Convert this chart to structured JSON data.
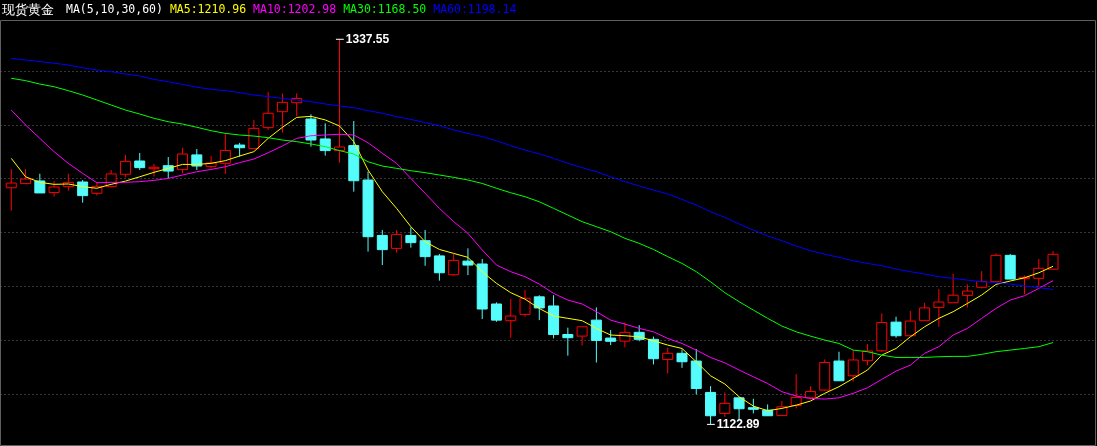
{
  "chart_data": {
    "type": "candlestick",
    "title": "现货黄金",
    "legend_title": "MA(5,10,30,60)",
    "legend": "top left",
    "grid": "y",
    "categories": [
      null,
      null,
      null,
      null,
      null,
      null,
      null,
      null,
      null,
      null,
      null,
      null,
      null,
      null,
      null,
      null,
      null,
      null,
      null,
      null,
      null,
      null,
      null,
      null,
      null,
      null,
      null,
      null,
      null,
      null,
      null,
      null,
      null,
      null,
      null,
      null,
      null,
      null,
      null,
      null,
      null,
      null,
      null,
      null,
      null,
      null,
      null,
      null,
      null,
      null,
      null,
      null,
      null,
      null,
      null,
      null,
      null,
      null,
      null,
      null,
      null,
      null,
      null,
      null,
      null,
      null,
      null,
      null,
      null,
      null,
      null,
      null,
      null,
      null
    ],
    "ylim": [
      1111.4,
      1348.3
    ],
    "yticks": [
      {
        "value": 1140,
        "label": null
      },
      {
        "value": 1170,
        "label": null
      },
      {
        "value": 1200,
        "label": null
      },
      {
        "value": 1230,
        "label": null
      },
      {
        "value": 1260,
        "label": null
      },
      {
        "value": 1290,
        "label": null
      },
      {
        "value": 1320,
        "label": null
      }
    ],
    "ohlc": [
      [
        1254.8,
        1265.2,
        1242.0,
        1257.4
      ],
      [
        1257.1,
        1265.2,
        1257.1,
        1259.6
      ],
      [
        1258.6,
        1262.6,
        1251.9,
        1251.9
      ],
      [
        1252.1,
        1258.4,
        1249.8,
        1255.2
      ],
      [
        1255.4,
        1262.6,
        1253.2,
        1257.8
      ],
      [
        1258.0,
        1259.1,
        1246.5,
        1250.4
      ],
      [
        1251.7,
        1257.8,
        1250.4,
        1255.6
      ],
      [
        1255.4,
        1264.7,
        1255.0,
        1262.5
      ],
      [
        1262.3,
        1273.1,
        1260.6,
        1269.5
      ],
      [
        1269.7,
        1274.2,
        1264.7,
        1266.0
      ],
      [
        1265.4,
        1268.1,
        1261.0,
        1266.2
      ],
      [
        1267.1,
        1271.9,
        1260.1,
        1264.1
      ],
      [
        1264.9,
        1277.1,
        1262.8,
        1273.6
      ],
      [
        1273.1,
        1276.4,
        1264.7,
        1266.9
      ],
      [
        1266.7,
        1272.5,
        1265.8,
        1268.6
      ],
      [
        1268.4,
        1285.1,
        1262.5,
        1275.6
      ],
      [
        1278.6,
        1279.8,
        1272.1,
        1277.1
      ],
      [
        1276.6,
        1292.6,
        1276.6,
        1287.9
      ],
      [
        1288.3,
        1308.2,
        1287.0,
        1296.3
      ],
      [
        1297.2,
        1307.3,
        1285.5,
        1302.4
      ],
      [
        1302.2,
        1307.4,
        1294.8,
        1304.6
      ],
      [
        1293.1,
        1295.7,
        1277.7,
        1281.4
      ],
      [
        1282.0,
        1290.7,
        1272.7,
        1275.5
      ],
      [
        1275.5,
        1337.55,
        1268.8,
        1277.5
      ],
      [
        1278.3,
        1292.0,
        1252.6,
        1258.7
      ],
      [
        1259.1,
        1263.8,
        1219.2,
        1227.5
      ],
      [
        1228.2,
        1231.2,
        1211.7,
        1220.3
      ],
      [
        1221.0,
        1231.2,
        1218.6,
        1228.8
      ],
      [
        1228.2,
        1232.7,
        1221.4,
        1224.2
      ],
      [
        1225.3,
        1231.2,
        1211.3,
        1216.4
      ],
      [
        1216.8,
        1217.9,
        1203.0,
        1207.4
      ],
      [
        1206.3,
        1217.9,
        1205.9,
        1214.3
      ],
      [
        1213.9,
        1221.0,
        1206.1,
        1211.7
      ],
      [
        1212.3,
        1215.1,
        1181.6,
        1187.2
      ],
      [
        1190.0,
        1190.9,
        1180.1,
        1181.0
      ],
      [
        1180.7,
        1192.8,
        1171.2,
        1183.3
      ],
      [
        1184.2,
        1197.8,
        1182.9,
        1193.2
      ],
      [
        1194.0,
        1194.9,
        1181.0,
        1187.8
      ],
      [
        1188.9,
        1194.9,
        1170.8,
        1173.0
      ],
      [
        1173.0,
        1176.8,
        1161.2,
        1171.2
      ],
      [
        1172.1,
        1177.3,
        1166.9,
        1177.3
      ],
      [
        1181.0,
        1188.1,
        1157.4,
        1169.7
      ],
      [
        1171.0,
        1175.5,
        1167.1,
        1169.2
      ],
      [
        1169.3,
        1179.7,
        1165.8,
        1174.2
      ],
      [
        1174.2,
        1178.2,
        1169.2,
        1170.3
      ],
      [
        1170.3,
        1171.8,
        1156.3,
        1159.5
      ],
      [
        1159.1,
        1165.6,
        1151.3,
        1162.5
      ],
      [
        1162.5,
        1164.7,
        1154.4,
        1157.8
      ],
      [
        1158.2,
        1164.9,
        1139.6,
        1142.9
      ],
      [
        1140.7,
        1144.2,
        1122.89,
        1127.7
      ],
      [
        1129.0,
        1140.7,
        1127.1,
        1134.6
      ],
      [
        1137.7,
        1137.9,
        1125.3,
        1131.6
      ],
      [
        1132.2,
        1137.2,
        1129.0,
        1131.3
      ],
      [
        1130.8,
        1134.0,
        1127.7,
        1127.7
      ],
      [
        1127.8,
        1135.9,
        1127.7,
        1132.7
      ],
      [
        1133.4,
        1150.9,
        1131.8,
        1137.9
      ],
      [
        1137.7,
        1144.2,
        1136.8,
        1141.2
      ],
      [
        1142.0,
        1159.1,
        1141.6,
        1157.4
      ],
      [
        1158.2,
        1163.4,
        1147.2,
        1147.2
      ],
      [
        1150.0,
        1164.3,
        1146.8,
        1158.8
      ],
      [
        1158.4,
        1167.6,
        1155.9,
        1163.8
      ],
      [
        1163.9,
        1184.8,
        1163.4,
        1179.7
      ],
      [
        1179.9,
        1182.9,
        1171.2,
        1172.3
      ],
      [
        1172.3,
        1186.1,
        1172.3,
        1180.5
      ],
      [
        1180.7,
        1190.7,
        1180.7,
        1187.8
      ],
      [
        1188.1,
        1198.3,
        1177.3,
        1191.1
      ],
      [
        1190.7,
        1206.7,
        1190.7,
        1194.9
      ],
      [
        1194.8,
        1200.9,
        1188.1,
        1197.2
      ],
      [
        1199.3,
        1208.3,
        1198.7,
        1202.6
      ],
      [
        1202.4,
        1218.2,
        1202.4,
        1217.1
      ],
      [
        1217.1,
        1217.9,
        1203.9,
        1203.9
      ],
      [
        1204.1,
        1205.9,
        1195.5,
        1204.9
      ],
      [
        1204.3,
        1215.1,
        1199.6,
        1209.9
      ],
      [
        1209.4,
        1219.5,
        1209.4,
        1217.7
      ]
    ],
    "colors": [
      "#ff0000",
      "#ff0000",
      "#54fcfc",
      "#ff0000",
      "#ff0000",
      "#54fcfc",
      "#ff0000",
      "#ff0000",
      "#ff0000",
      "#54fcfc",
      "#ff0000",
      "#54fcfc",
      "#ff0000",
      "#54fcfc",
      "#ff0000",
      "#ff0000",
      "#54fcfc",
      "#ff0000",
      "#ff0000",
      "#ff0000",
      "#ff0000",
      "#54fcfc",
      "#54fcfc",
      "#ff0000",
      "#54fcfc",
      "#54fcfc",
      "#54fcfc",
      "#ff0000",
      "#54fcfc",
      "#54fcfc",
      "#54fcfc",
      "#ff0000",
      "#54fcfc",
      "#54fcfc",
      "#54fcfc",
      "#ff0000",
      "#ff0000",
      "#54fcfc",
      "#54fcfc",
      "#54fcfc",
      "#ff0000",
      "#54fcfc",
      "#54fcfc",
      "#ff0000",
      "#54fcfc",
      "#54fcfc",
      "#ff0000",
      "#54fcfc",
      "#54fcfc",
      "#54fcfc",
      "#ff0000",
      "#54fcfc",
      "#54fcfc",
      "#54fcfc",
      "#ff0000",
      "#ff0000",
      "#ff0000",
      "#ff0000",
      "#54fcfc",
      "#ff0000",
      "#ff0000",
      "#ff0000",
      "#54fcfc",
      "#ff0000",
      "#ff0000",
      "#ff0000",
      "#ff0000",
      "#ff0000",
      "#ff0000",
      "#ff0000",
      "#54fcfc",
      "#ff0000",
      "#ff0000",
      "#ff0000"
    ],
    "series": [
      {
        "name": "MA5:1210.96",
        "type": "line",
        "color": "#ffff00",
        "values": [
          1271.2,
          1260.9,
          1257.8,
          1256.7,
          1256.9,
          1255.4,
          1254.5,
          1256.7,
          1258.5,
          1260.9,
          1263.4,
          1265.6,
          1267.8,
          1267.8,
          1268.4,
          1269.9,
          1272.5,
          1274.9,
          1282.3,
          1288.5,
          1294.0,
          1294.6,
          1292.6,
          1289.2,
          1280.5,
          1264.7,
          1252.6,
          1243.3,
          1233.1,
          1224.7,
          1220.4,
          1218.2,
          1216.0,
          1208.0,
          1201.5,
          1196.3,
          1192.7,
          1187.5,
          1183.3,
          1182.0,
          1180.7,
          1176.4,
          1172.7,
          1172.3,
          1171.7,
          1169.5,
          1167.1,
          1165.2,
          1157.8,
          1150.0,
          1145.4,
          1138.3,
          1133.1,
          1130.5,
          1131.8,
          1133.6,
          1135.9,
          1140.2,
          1143.9,
          1148.5,
          1153.2,
          1161.5,
          1165.2,
          1171.7,
          1177.3,
          1182.0,
          1185.7,
          1190.3,
          1195.0,
          1200.9,
          1202.8,
          1204.6,
          1207.4,
          1211.0
        ]
      },
      {
        "name": "MA10:1202.98",
        "type": "line",
        "color": "#ff00ff",
        "values": [
          1298.1,
          1289.8,
          1282.3,
          1274.9,
          1268.4,
          1262.8,
          1257.6,
          1257.8,
          1257.8,
          1258.2,
          1258.9,
          1260.0,
          1261.9,
          1263.7,
          1265.0,
          1266.5,
          1268.8,
          1270.8,
          1274.3,
          1278.1,
          1282.3,
          1283.8,
          1284.2,
          1284.6,
          1284.2,
          1279.9,
          1274.0,
          1268.4,
          1260.0,
          1251.7,
          1243.3,
          1235.9,
          1229.4,
          1220.1,
          1211.7,
          1208.0,
          1205.2,
          1201.1,
          1195.9,
          1192.2,
          1190.0,
          1185.7,
          1181.0,
          1178.8,
          1176.4,
          1174.5,
          1170.8,
          1168.0,
          1164.3,
          1160.2,
          1157.2,
          1153.2,
          1149.4,
          1145.7,
          1141.1,
          1138.7,
          1137.4,
          1137.0,
          1137.7,
          1140.2,
          1143.3,
          1148.0,
          1152.6,
          1155.9,
          1162.5,
          1166.2,
          1172.7,
          1176.4,
          1182.0,
          1187.5,
          1192.2,
          1194.6,
          1198.7,
          1203.0
        ]
      },
      {
        "name": "MA30:1168.50",
        "type": "line",
        "color": "#00ff00",
        "values": [
          1315.8,
          1314.5,
          1312.6,
          1311.1,
          1308.9,
          1306.5,
          1303.7,
          1300.9,
          1298.1,
          1295.9,
          1293.5,
          1291.6,
          1290.3,
          1288.5,
          1286.6,
          1285.1,
          1284.2,
          1283.6,
          1282.7,
          1281.4,
          1280.5,
          1279.2,
          1277.7,
          1275.5,
          1273.6,
          1269.3,
          1266.9,
          1265.6,
          1264.3,
          1263.2,
          1261.9,
          1260.6,
          1259.1,
          1257.2,
          1254.5,
          1252.0,
          1249.8,
          1247.0,
          1243.3,
          1239.6,
          1235.9,
          1233.1,
          1230.3,
          1226.6,
          1223.8,
          1220.4,
          1216.4,
          1212.6,
          1208.0,
          1202.4,
          1196.3,
          1191.3,
          1186.6,
          1182.0,
          1177.7,
          1174.5,
          1172.1,
          1169.9,
          1168.0,
          1164.3,
          1163.4,
          1161.5,
          1160.2,
          1160.2,
          1160.2,
          1160.6,
          1160.8,
          1160.8,
          1161.9,
          1163.4,
          1164.3,
          1165.2,
          1166.2,
          1168.5
        ]
      },
      {
        "name": "MA60:1198.14",
        "type": "line",
        "color": "#0000ff",
        "values": [
          1326.9,
          1326.0,
          1325.1,
          1324.2,
          1323.2,
          1321.7,
          1320.4,
          1319.5,
          1318.2,
          1317.1,
          1315.2,
          1313.9,
          1312.4,
          1310.8,
          1309.7,
          1308.9,
          1307.8,
          1306.5,
          1305.6,
          1304.6,
          1303.7,
          1302.8,
          1301.5,
          1300.4,
          1299.4,
          1297.8,
          1296.3,
          1294.4,
          1292.9,
          1291.1,
          1289.4,
          1287.0,
          1285.1,
          1283.3,
          1281.0,
          1278.2,
          1275.8,
          1273.6,
          1271.2,
          1268.4,
          1266.0,
          1263.7,
          1260.9,
          1258.2,
          1255.8,
          1253.5,
          1251.3,
          1248.3,
          1245.2,
          1241.4,
          1238.3,
          1234.6,
          1231.2,
          1227.9,
          1225.3,
          1222.3,
          1219.7,
          1217.8,
          1216.0,
          1214.1,
          1212.6,
          1211.3,
          1209.5,
          1208.0,
          1206.7,
          1205.2,
          1204.3,
          1203.3,
          1202.4,
          1201.9,
          1201.1,
          1200.0,
          1199.1,
          1198.1
        ]
      }
    ],
    "annotations": [
      "1337.55",
      "1122.89"
    ]
  }
}
